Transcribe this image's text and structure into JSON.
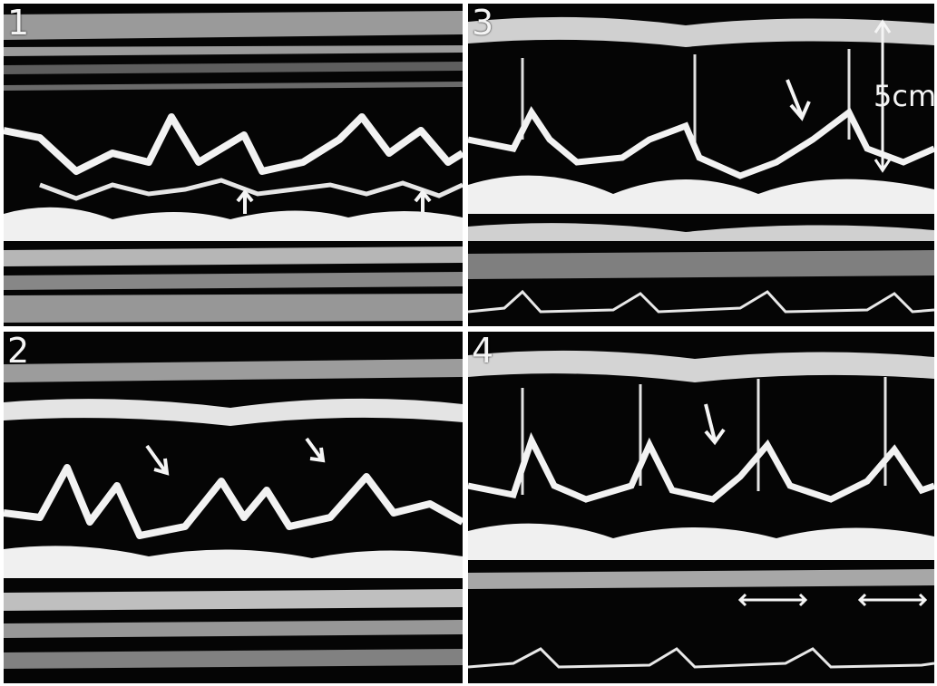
{
  "figure": {
    "panels": [
      {
        "id": "1",
        "label": "1"
      },
      {
        "id": "3",
        "label": "3"
      },
      {
        "id": "2",
        "label": "2"
      },
      {
        "id": "4",
        "label": "4"
      }
    ],
    "scale_bar": {
      "label": "5cm"
    }
  },
  "colors": {
    "background": "#050505",
    "echo": "#f0f0f0",
    "frame": "#ffffff"
  }
}
